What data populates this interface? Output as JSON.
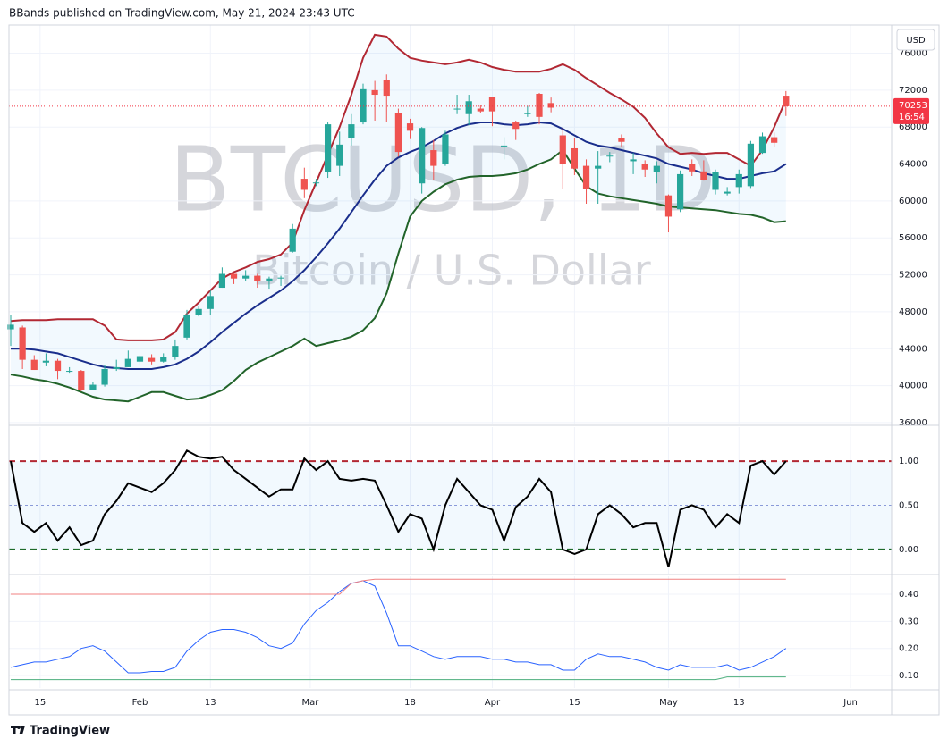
{
  "header": {
    "title": "BBands published on TradingView.com, May 21, 2024 23:43 UTC"
  },
  "footer": {
    "brand": "TradingView"
  },
  "chart_data": [
    {
      "type": "candlestick",
      "title": "BTCUSD, 1D",
      "subtitle": "Bitcoin / U.S. Dollar",
      "currency": "USD",
      "x": [
        "2024-01-10",
        "2024-01-12",
        "2024-01-14",
        "2024-01-16",
        "2024-01-18",
        "2024-01-20",
        "2024-01-22",
        "2024-01-24",
        "2024-01-26",
        "2024-01-28",
        "2024-01-30",
        "2024-02-01",
        "2024-02-03",
        "2024-02-05",
        "2024-02-07",
        "2024-02-09",
        "2024-02-11",
        "2024-02-13",
        "2024-02-15",
        "2024-02-17",
        "2024-02-19",
        "2024-02-21",
        "2024-02-23",
        "2024-02-25",
        "2024-02-27",
        "2024-02-29",
        "2024-03-02",
        "2024-03-04",
        "2024-03-06",
        "2024-03-08",
        "2024-03-10",
        "2024-03-12",
        "2024-03-14",
        "2024-03-16",
        "2024-03-18",
        "2024-03-20",
        "2024-03-22",
        "2024-03-24",
        "2024-03-26",
        "2024-03-28",
        "2024-03-30",
        "2024-04-01",
        "2024-04-03",
        "2024-04-05",
        "2024-04-07",
        "2024-04-09",
        "2024-04-11",
        "2024-04-13",
        "2024-04-15",
        "2024-04-17",
        "2024-04-19",
        "2024-04-21",
        "2024-04-23",
        "2024-04-25",
        "2024-04-27",
        "2024-04-29",
        "2024-05-01",
        "2024-05-03",
        "2024-05-05",
        "2024-05-07",
        "2024-05-09",
        "2024-05-11",
        "2024-05-13",
        "2024-05-15",
        "2024-05-17",
        "2024-05-19",
        "2024-05-21"
      ],
      "open": [
        46100,
        46300,
        42800,
        42500,
        42700,
        41600,
        41600,
        39500,
        40100,
        41800,
        42000,
        42600,
        43000,
        42600,
        43100,
        45200,
        47700,
        48300,
        50600,
        52100,
        51600,
        51900,
        51300,
        51600,
        54500,
        62400,
        62000,
        63100,
        63800,
        66800,
        68500,
        72000,
        73100,
        69500,
        68400,
        61900,
        65500,
        64000,
        69900,
        69400,
        70000,
        71300,
        65900,
        68500,
        69400,
        71600,
        70600,
        67100,
        65700,
        63800,
        63500,
        64900,
        66800,
        64300,
        64000,
        63100,
        60600,
        59100,
        64000,
        63200,
        61200,
        60800,
        61500,
        61600,
        65200,
        66900,
        71400
      ],
      "high": [
        47700,
        46500,
        43300,
        43500,
        42900,
        42000,
        41700,
        40400,
        42200,
        42800,
        43800,
        43300,
        43400,
        43500,
        45000,
        48200,
        48600,
        50300,
        52800,
        52200,
        52500,
        52100,
        51800,
        51900,
        57500,
        63600,
        62400,
        68500,
        67500,
        69400,
        72700,
        73000,
        73700,
        70000,
        68900,
        68000,
        66600,
        67600,
        71500,
        71500,
        70400,
        71300,
        66900,
        68700,
        70300,
        71700,
        71200,
        67900,
        66800,
        64500,
        65400,
        65300,
        67200,
        65200,
        64400,
        64300,
        60700,
        63300,
        64500,
        64400,
        63400,
        61500,
        63400,
        66500,
        67400,
        67400,
        71900
      ],
      "low": [
        44300,
        41800,
        41700,
        42100,
        40700,
        41400,
        39400,
        39500,
        39900,
        41600,
        42000,
        42300,
        42300,
        42500,
        42800,
        45000,
        47500,
        47700,
        50600,
        51000,
        51300,
        50600,
        50500,
        50800,
        54400,
        60300,
        61600,
        62500,
        62700,
        66000,
        68300,
        68700,
        68600,
        64800,
        66700,
        60800,
        62300,
        63800,
        69400,
        68200,
        69500,
        68100,
        64500,
        66600,
        69100,
        68300,
        69600,
        61300,
        62800,
        59700,
        59700,
        64200,
        65900,
        62900,
        62600,
        61900,
        56600,
        58800,
        62700,
        62200,
        60700,
        60600,
        60800,
        61400,
        65100,
        65800,
        69200
      ],
      "close": [
        46600,
        42800,
        41700,
        42700,
        41600,
        41600,
        39500,
        40100,
        41800,
        42000,
        42900,
        43200,
        42600,
        43100,
        44300,
        47700,
        48300,
        49700,
        52100,
        51600,
        51900,
        51300,
        51600,
        51700,
        57000,
        61200,
        62000,
        68300,
        66100,
        68300,
        72100,
        71500,
        71400,
        65300,
        67600,
        67900,
        63800,
        67200,
        70000,
        70800,
        69700,
        69700,
        66000,
        67800,
        69500,
        69100,
        70100,
        64000,
        63500,
        61300,
        63800,
        64900,
        66400,
        64500,
        63400,
        63800,
        58300,
        62900,
        63200,
        62300,
        63100,
        61000,
        62900,
        66200,
        67000,
        66300,
        70253
      ],
      "up_color": "#26a69a",
      "down_color": "#ef5350",
      "lines": [
        {
          "color": "#b22833",
          "values": [
            47000,
            47100,
            47100,
            47100,
            47200,
            47200,
            47200,
            47200,
            46500,
            45000,
            44900,
            44900,
            44900,
            45000,
            45800,
            47800,
            49000,
            50300,
            51600,
            52300,
            52800,
            53400,
            53700,
            54200,
            55500,
            59000,
            62000,
            65000,
            68000,
            71500,
            75500,
            78000,
            77800,
            76500,
            75500,
            75200,
            75000,
            74800,
            75000,
            75300,
            75000,
            74500,
            74200,
            74000,
            74000,
            74000,
            74300,
            74800,
            74200,
            73300,
            72500,
            71700,
            71000,
            70200,
            69000,
            67300,
            65800,
            65100,
            65200,
            65100,
            65200,
            65200,
            64500,
            63800,
            65500,
            68000,
            71000
          ]
        },
        {
          "color": "#1a2e8c",
          "values": [
            44000,
            44000,
            43900,
            43700,
            43500,
            43100,
            42700,
            42300,
            42000,
            41900,
            41800,
            41800,
            41800,
            42000,
            42300,
            42900,
            43700,
            44700,
            45800,
            46800,
            47800,
            48700,
            49500,
            50300,
            51300,
            52500,
            53900,
            55400,
            57000,
            58800,
            60600,
            62300,
            63800,
            64700,
            65300,
            65800,
            66500,
            67300,
            67900,
            68300,
            68500,
            68500,
            68300,
            68200,
            68300,
            68500,
            68400,
            67800,
            67100,
            66400,
            66000,
            65800,
            65500,
            65200,
            64900,
            64600,
            64000,
            63700,
            63400,
            63000,
            62700,
            62400,
            62400,
            62700,
            63000,
            63200,
            64000
          ]
        },
        {
          "color": "#22642a",
          "values": [
            41200,
            41000,
            40700,
            40500,
            40200,
            39800,
            39300,
            38800,
            38500,
            38400,
            38300,
            38800,
            39300,
            39300,
            38900,
            38500,
            38600,
            39000,
            39500,
            40500,
            41700,
            42500,
            43100,
            43700,
            44300,
            45100,
            44300,
            44600,
            44900,
            45300,
            46000,
            47300,
            50000,
            54300,
            58300,
            60000,
            61000,
            61800,
            62300,
            62600,
            62700,
            62700,
            62800,
            63000,
            63400,
            64000,
            64500,
            65500,
            63500,
            61600,
            60800,
            60500,
            60300,
            60100,
            59900,
            59700,
            59400,
            59300,
            59200,
            59100,
            59000,
            58800,
            58600,
            58500,
            58200,
            57700,
            57800
          ]
        }
      ],
      "band_fill": "#2196f3",
      "last_price": 70253,
      "countdown": "16:54",
      "last_price_color": "#f23645",
      "xlim": [
        "2024-01-10",
        "2024-06-08"
      ],
      "xticks": [
        {
          "value": "2024-01-15",
          "label": "15"
        },
        {
          "value": "2024-02-01",
          "label": "Feb"
        },
        {
          "value": "2024-02-13",
          "label": "13"
        },
        {
          "value": "2024-03-01",
          "label": "Mar"
        },
        {
          "value": "2024-03-18",
          "label": "18"
        },
        {
          "value": "2024-04-01",
          "label": "Apr"
        },
        {
          "value": "2024-04-15",
          "label": "15"
        },
        {
          "value": "2024-05-01",
          "label": "May"
        },
        {
          "value": "2024-05-13",
          "label": "13"
        },
        {
          "value": "2024-06-01",
          "label": "Jun"
        }
      ],
      "ylim": [
        35800,
        79050
      ],
      "yticks": [
        36000,
        40000,
        44000,
        48000,
        52000,
        56000,
        60000,
        64000,
        68000,
        72000,
        76000
      ],
      "grid": true
    },
    {
      "type": "line",
      "series": [
        {
          "color": "#000000",
          "values": [
            1.0,
            0.3,
            0.2,
            0.3,
            0.1,
            0.25,
            0.05,
            0.1,
            0.4,
            0.55,
            0.75,
            0.7,
            0.65,
            0.75,
            0.9,
            1.12,
            1.05,
            1.03,
            1.05,
            0.9,
            0.8,
            0.7,
            0.6,
            0.68,
            0.68,
            1.03,
            0.9,
            1.0,
            0.8,
            0.78,
            0.8,
            0.78,
            0.5,
            0.2,
            0.4,
            0.35,
            0.0,
            0.5,
            0.8,
            0.65,
            0.5,
            0.45,
            0.1,
            0.48,
            0.6,
            0.8,
            0.65,
            0.0,
            -0.05,
            0.0,
            0.4,
            0.5,
            0.4,
            0.25,
            0.3,
            0.3,
            -0.2,
            0.45,
            0.5,
            0.45,
            0.25,
            0.4,
            0.3,
            0.95,
            1.0,
            0.85,
            1.0
          ]
        }
      ],
      "ylim": [
        -0.274,
        1.386
      ],
      "yticks": [
        {
          "value": 1,
          "label": "1.00"
        },
        {
          "value": 0.5,
          "label": "0.50"
        },
        {
          "value": 0,
          "label": "0.00"
        }
      ],
      "tick_line_colors": [
        "#b22833",
        "#8a9ad9",
        "#1e6b2a"
      ],
      "tick_line_styles": [
        "dashed",
        "dotted",
        "dashed"
      ],
      "band_fill": "#2196f3"
    },
    {
      "type": "line",
      "series": [
        {
          "color": "#2962ff",
          "values": [
            0.13,
            0.14,
            0.15,
            0.15,
            0.16,
            0.17,
            0.2,
            0.21,
            0.19,
            0.15,
            0.11,
            0.11,
            0.115,
            0.115,
            0.13,
            0.19,
            0.23,
            0.26,
            0.27,
            0.27,
            0.26,
            0.24,
            0.21,
            0.2,
            0.22,
            0.29,
            0.34,
            0.37,
            0.41,
            0.44,
            0.45,
            0.43,
            0.33,
            0.21,
            0.21,
            0.19,
            0.17,
            0.16,
            0.17,
            0.17,
            0.17,
            0.16,
            0.16,
            0.15,
            0.15,
            0.14,
            0.14,
            0.12,
            0.12,
            0.16,
            0.18,
            0.17,
            0.17,
            0.16,
            0.15,
            0.13,
            0.12,
            0.14,
            0.13,
            0.13,
            0.13,
            0.14,
            0.12,
            0.13,
            0.15,
            0.17,
            0.2
          ]
        },
        {
          "color": "#f08080",
          "values": [
            0.4,
            0.4,
            0.4,
            0.4,
            0.4,
            0.4,
            0.4,
            0.4,
            0.4,
            0.4,
            0.4,
            0.4,
            0.4,
            0.4,
            0.4,
            0.4,
            0.4,
            0.4,
            0.4,
            0.4,
            0.4,
            0.4,
            0.4,
            0.4,
            0.4,
            0.4,
            0.4,
            0.4,
            0.4,
            0.44,
            0.45,
            0.455,
            0.455,
            0.455,
            0.455,
            0.455,
            0.455,
            0.455,
            0.455,
            0.455,
            0.455,
            0.455,
            0.455,
            0.455,
            0.455,
            0.455,
            0.455,
            0.455,
            0.455,
            0.455,
            0.455,
            0.455,
            0.455,
            0.455,
            0.455,
            0.455,
            0.455,
            0.455,
            0.455,
            0.455,
            0.455,
            0.455,
            0.455,
            0.455,
            0.455,
            0.455,
            0.455
          ]
        },
        {
          "color": "#4caf7d",
          "values": [
            0.085,
            0.085,
            0.085,
            0.085,
            0.085,
            0.085,
            0.085,
            0.085,
            0.085,
            0.085,
            0.085,
            0.085,
            0.085,
            0.085,
            0.085,
            0.085,
            0.085,
            0.085,
            0.085,
            0.085,
            0.085,
            0.085,
            0.085,
            0.085,
            0.085,
            0.085,
            0.085,
            0.085,
            0.085,
            0.085,
            0.085,
            0.085,
            0.085,
            0.085,
            0.085,
            0.085,
            0.085,
            0.085,
            0.085,
            0.085,
            0.085,
            0.085,
            0.085,
            0.085,
            0.085,
            0.085,
            0.085,
            0.085,
            0.085,
            0.085,
            0.085,
            0.085,
            0.085,
            0.085,
            0.085,
            0.085,
            0.085,
            0.085,
            0.085,
            0.085,
            0.085,
            0.095,
            0.095,
            0.095,
            0.095,
            0.095,
            0.095
          ]
        }
      ],
      "ylim": [
        0.054,
        0.466
      ],
      "yticks": [
        {
          "value": 0.4,
          "label": "0.40"
        },
        {
          "value": 0.3,
          "label": "0.30"
        },
        {
          "value": 0.2,
          "label": "0.20"
        },
        {
          "value": 0.1,
          "label": "0.10"
        }
      ],
      "grid": true
    }
  ]
}
